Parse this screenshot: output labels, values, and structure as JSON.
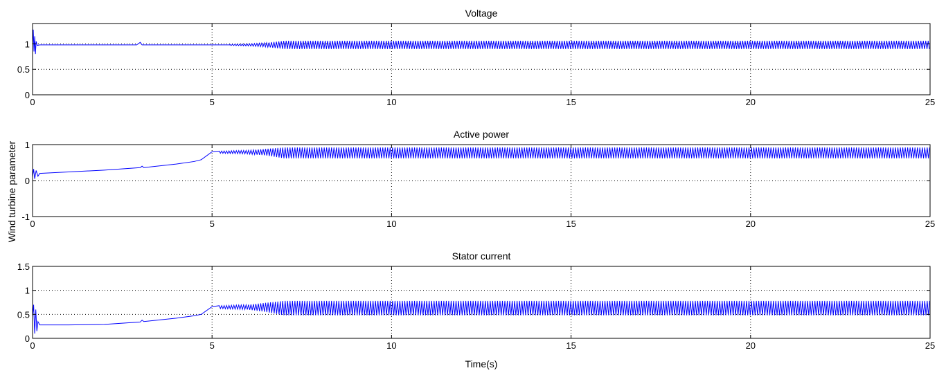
{
  "figure": {
    "ylabel": "Wind turbine parameter",
    "xlabel": "Time(s)"
  },
  "colors": {
    "series": "#0000ff",
    "axes": "#000000",
    "grid": "#000000",
    "background": "#ffffff"
  },
  "chart_data": [
    {
      "type": "line",
      "title": "Voltage",
      "xlabel": "",
      "ylabel": "",
      "xlim": [
        0,
        25
      ],
      "ylim": [
        0,
        1.4
      ],
      "xticks": [
        0,
        5,
        10,
        15,
        20,
        25
      ],
      "xtick_labels": [
        "0",
        "5",
        "10",
        "15",
        "20",
        "25"
      ],
      "yticks": [
        0,
        0.5,
        1
      ],
      "ytick_labels": [
        "0",
        "0.5",
        "1"
      ],
      "grid": "dotted",
      "series": [
        {
          "x": [
            0,
            0.02,
            0.04,
            0.06,
            0.08,
            0.1,
            0.13,
            0.2,
            2.9,
            3.0,
            3.05,
            5.5,
            6.0,
            6.5,
            7.0,
            25
          ],
          "y": [
            1.0,
            1.28,
            0.85,
            1.15,
            0.8,
            1.05,
            0.97,
            0.98,
            0.98,
            1.03,
            0.98,
            0.98,
            0.98,
            0.98,
            0.98,
            0.98
          ],
          "oscillation": {
            "t": [
              5.5,
              6.0,
              6.5,
              7.0,
              25
            ],
            "min": [
              0.97,
              0.96,
              0.94,
              0.9,
              0.9
            ],
            "max": [
              0.99,
              1.0,
              1.02,
              1.06,
              1.06
            ]
          }
        }
      ]
    },
    {
      "type": "line",
      "title": "Active power",
      "xlabel": "",
      "ylabel": "",
      "xlim": [
        0,
        25
      ],
      "ylim": [
        -1,
        1
      ],
      "xticks": [
        0,
        5,
        10,
        15,
        20,
        25
      ],
      "xtick_labels": [
        "0",
        "5",
        "10",
        "15",
        "20",
        "25"
      ],
      "yticks": [
        -1,
        0,
        1
      ],
      "ytick_labels": [
        "-1",
        "0",
        "1"
      ],
      "grid": "dotted",
      "series": [
        {
          "x": [
            0,
            0.03,
            0.06,
            0.1,
            0.15,
            0.2,
            1,
            2,
            3,
            3.05,
            3.1,
            4,
            4.5,
            4.7,
            5.0,
            5.5,
            25
          ],
          "y": [
            0.1,
            0.32,
            0.05,
            0.28,
            0.12,
            0.2,
            0.24,
            0.29,
            0.36,
            0.4,
            0.36,
            0.46,
            0.53,
            0.58,
            0.8,
            0.79,
            0.79
          ],
          "oscillation": {
            "t": [
              5.2,
              6.0,
              6.5,
              7.0,
              25
            ],
            "min": [
              0.76,
              0.74,
              0.7,
              0.62,
              0.62
            ],
            "max": [
              0.82,
              0.84,
              0.88,
              0.92,
              0.92
            ]
          }
        }
      ]
    },
    {
      "type": "line",
      "title": "Stator current",
      "xlabel": "Time(s)",
      "ylabel": "",
      "xlim": [
        0,
        25
      ],
      "ylim": [
        0,
        1.5
      ],
      "xticks": [
        0,
        5,
        10,
        15,
        20,
        25
      ],
      "xtick_labels": [
        "0",
        "5",
        "10",
        "15",
        "20",
        "25"
      ],
      "yticks": [
        0,
        0.5,
        1,
        1.5
      ],
      "ytick_labels": [
        "0",
        "0.5",
        "1",
        "1.5"
      ],
      "grid": "dotted",
      "series": [
        {
          "x": [
            0,
            0.03,
            0.06,
            0.09,
            0.12,
            0.15,
            0.2,
            1,
            2,
            3,
            3.05,
            3.1,
            4,
            4.5,
            4.7,
            5.0,
            5.5,
            25
          ],
          "y": [
            0.45,
            0.7,
            0.1,
            0.6,
            0.15,
            0.35,
            0.28,
            0.28,
            0.29,
            0.34,
            0.38,
            0.35,
            0.42,
            0.47,
            0.5,
            0.66,
            0.65,
            0.65
          ],
          "oscillation": {
            "t": [
              5.2,
              6.0,
              6.5,
              7.0,
              25
            ],
            "min": [
              0.62,
              0.6,
              0.55,
              0.48,
              0.48
            ],
            "max": [
              0.68,
              0.7,
              0.74,
              0.78,
              0.78
            ]
          }
        }
      ]
    }
  ]
}
